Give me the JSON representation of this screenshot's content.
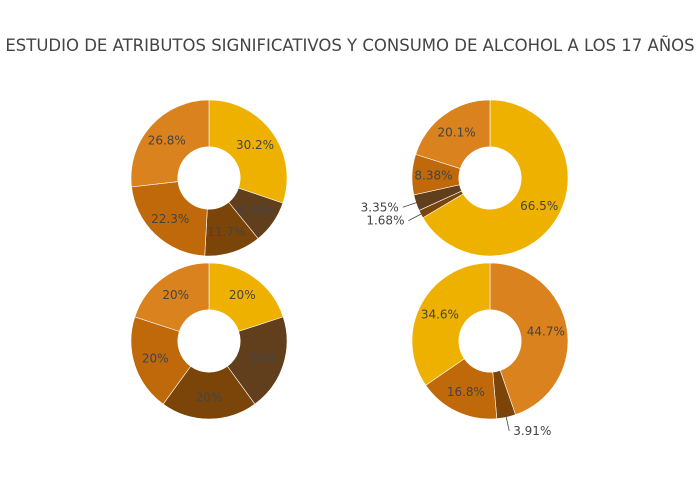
{
  "chart_data": {
    "type": "pie",
    "title": "ESTUDIO DE ATRIBUTOS SIGNIFICATIVOS  Y CONSUMO DE ALCOHOL A LOS 17 AÑOS",
    "hole": 0.4,
    "charts": [
      {
        "position": "top-left",
        "values": [
          30.2,
          8.94,
          11.7,
          22.3,
          26.8
        ],
        "labels": [
          "30.2%",
          "8.94%",
          "11.7%",
          "22.3%",
          "26.8%"
        ],
        "colors": [
          "#EEB100",
          "#613F1C",
          "#7B4509",
          "#C0690A",
          "#D9821E"
        ]
      },
      {
        "position": "top-right",
        "values": [
          66.5,
          1.68,
          3.35,
          8.38,
          20.1
        ],
        "labels": [
          "66.5%",
          "1.68%",
          "3.35%",
          "8.38%",
          "20.1%"
        ],
        "colors": [
          "#EEB100",
          "#7B4509",
          "#613F1C",
          "#C0690A",
          "#D9821E"
        ]
      },
      {
        "position": "bottom-left",
        "values": [
          20,
          20,
          20,
          20,
          20
        ],
        "labels": [
          "20%",
          "20%",
          "20%",
          "20%",
          "20%"
        ],
        "colors": [
          "#EEB100",
          "#613F1C",
          "#7B4509",
          "#C0690A",
          "#D9821E"
        ]
      },
      {
        "position": "bottom-right",
        "values": [
          44.7,
          3.91,
          16.8,
          34.6
        ],
        "labels": [
          "44.7%",
          "3.91%",
          "16.8%",
          "34.6%"
        ],
        "colors": [
          "#D9821E",
          "#7B4509",
          "#C0690A",
          "#EEB100"
        ]
      }
    ]
  }
}
